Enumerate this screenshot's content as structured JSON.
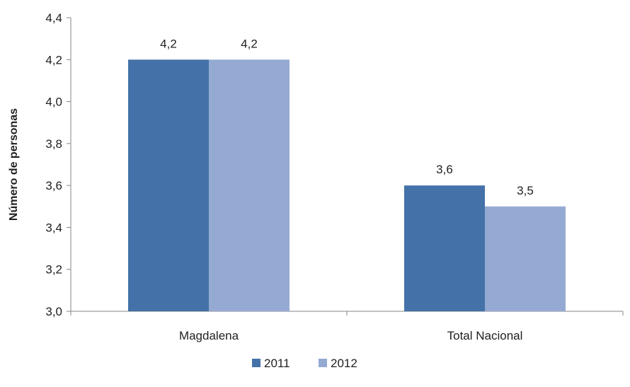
{
  "chart_data": {
    "type": "bar",
    "title": "",
    "xlabel": "",
    "ylabel": "Número de personas",
    "ylim": [
      3.0,
      4.4
    ],
    "yticks": [
      "3,0",
      "3,2",
      "3,4",
      "3,6",
      "3,8",
      "4,0",
      "4,2",
      "4,4"
    ],
    "ytick_values": [
      3.0,
      3.2,
      3.4,
      3.6,
      3.8,
      4.0,
      4.2,
      4.4
    ],
    "categories": [
      "Magdalena",
      "Total Nacional"
    ],
    "series": [
      {
        "name": "2011",
        "values": [
          4.2,
          3.6
        ],
        "labels": [
          "4,2",
          "3,6"
        ],
        "color": "#4472a8"
      },
      {
        "name": "2012",
        "values": [
          4.2,
          3.5
        ],
        "labels": [
          "4,2",
          "3,5"
        ],
        "color": "#95aad3"
      }
    ],
    "grid": false,
    "legend_position": "bottom"
  }
}
